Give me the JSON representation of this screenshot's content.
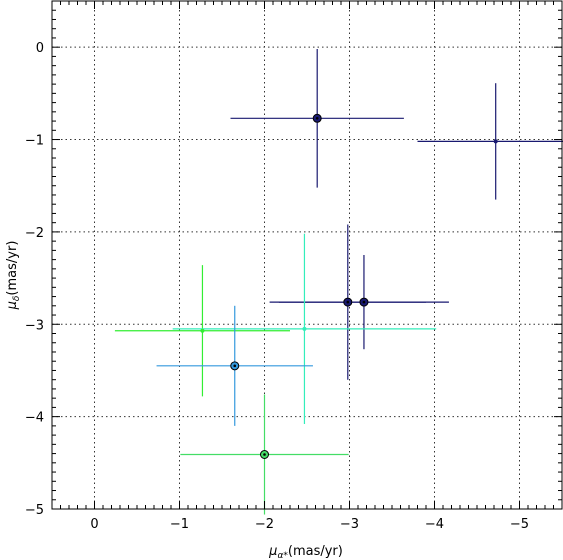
{
  "chart_data": {
    "type": "scatter",
    "xlabel_symbol": "μ",
    "xlabel_sub": "α*",
    "xlabel_unit": "(mas/yr)",
    "ylabel_symbol": "μ",
    "ylabel_sub": "δ",
    "ylabel_unit": "(mas/yr)",
    "xlim": [
      0.5,
      -5.5
    ],
    "ylim": [
      -5,
      0.5
    ],
    "x_ticks": [
      0,
      -1,
      -2,
      -3,
      -4,
      -5
    ],
    "x_tick_labels": [
      "0",
      "−1",
      "−2",
      "−3",
      "−4",
      "−5"
    ],
    "y_ticks": [
      0,
      -1,
      -2,
      -3,
      -4,
      -5
    ],
    "y_tick_labels": [
      "0",
      "−1",
      "−2",
      "−3",
      "−4",
      "−5"
    ],
    "grid": true,
    "points": [
      {
        "x": -2.62,
        "y": -0.77,
        "xerr": 1.02,
        "yerr": 0.75,
        "color": "#191970",
        "marker": "circle"
      },
      {
        "x": -4.72,
        "y": -1.02,
        "xerr": 0.92,
        "yerr": 0.63,
        "color": "#191970",
        "marker": "dot"
      },
      {
        "x": -2.98,
        "y": -2.76,
        "xerr": 0.92,
        "yerr": 0.84,
        "color": "#191970",
        "marker": "circle"
      },
      {
        "x": -3.17,
        "y": -2.76,
        "xerr": 1.0,
        "yerr": 0.51,
        "color": "#191970",
        "marker": "circle"
      },
      {
        "x": -1.27,
        "y": -3.07,
        "xerr": 1.03,
        "yerr": 0.71,
        "color": "#33ee33",
        "marker": "dot"
      },
      {
        "x": -2.47,
        "y": -3.05,
        "xerr": 1.55,
        "yerr": 1.03,
        "color": "#33eebb",
        "marker": "dot"
      },
      {
        "x": -1.65,
        "y": -3.45,
        "xerr": 0.92,
        "yerr": 0.65,
        "color": "#3399dd",
        "marker": "circle"
      },
      {
        "x": -2.0,
        "y": -4.41,
        "xerr": 0.99,
        "yerr": 0.65,
        "color": "#44dd66",
        "marker": "circle"
      }
    ]
  }
}
